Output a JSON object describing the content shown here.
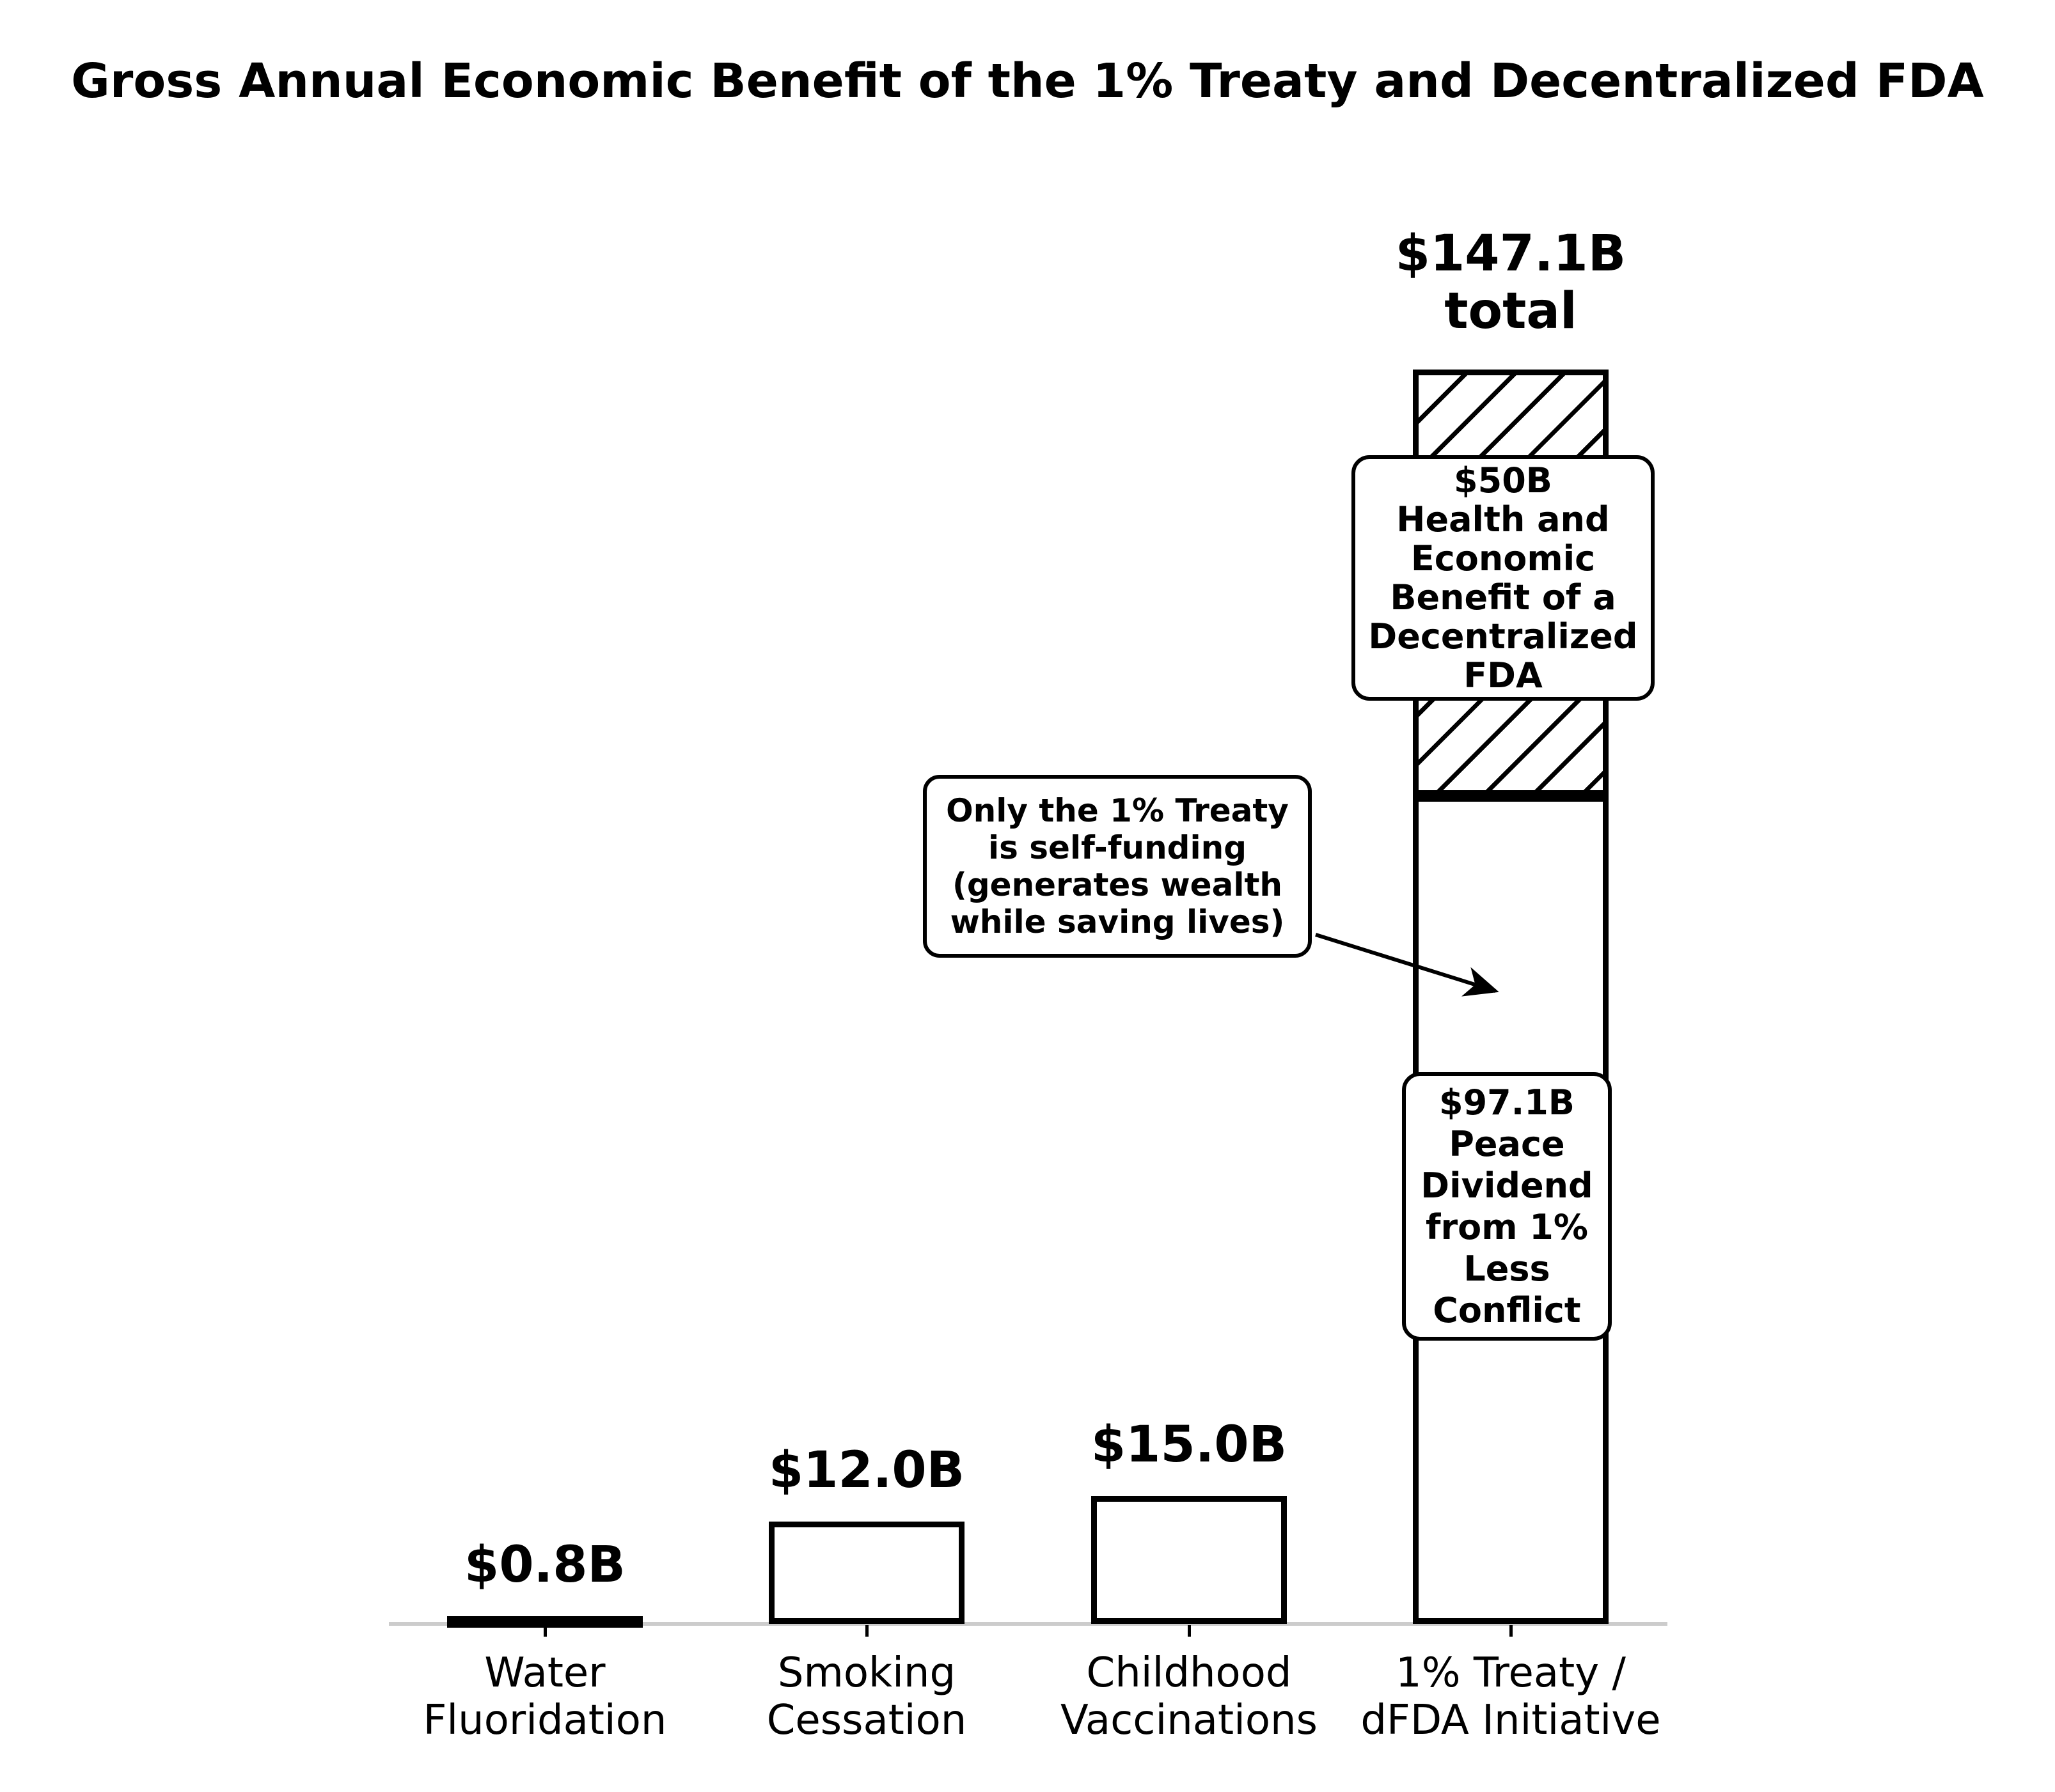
{
  "chart_data": {
    "type": "bar",
    "title": "Gross Annual Economic Benefit of the 1% Treaty and Decentralized FDA",
    "xlabel": "",
    "ylabel": "",
    "ylim": [
      0,
      160
    ],
    "grid": false,
    "legend": "none",
    "units": "billions USD per year",
    "axis_color": "#cccccc",
    "bar_edge_color": "#000000",
    "bar_fill_color": "#ffffff",
    "hatch_pattern": "/",
    "categories": [
      "Water Fluoridation",
      "Smoking Cessation",
      "Childhood Vaccinations",
      "1% Treaty / dFDA Initiative"
    ],
    "values": [
      0.8,
      12.0,
      15.0,
      147.1
    ],
    "bars": [
      {
        "category_lines": [
          "Water",
          "Fluoridation"
        ],
        "value": 0.8,
        "value_label": "$0.8B",
        "segments": [
          {
            "value": 0.8,
            "hatched": false
          }
        ]
      },
      {
        "category_lines": [
          "Smoking",
          "Cessation"
        ],
        "value": 12.0,
        "value_label": "$12.0B",
        "segments": [
          {
            "value": 12.0,
            "hatched": false
          }
        ]
      },
      {
        "category_lines": [
          "Childhood",
          "Vaccinations"
        ],
        "value": 15.0,
        "value_label": "$15.0B",
        "segments": [
          {
            "value": 15.0,
            "hatched": false
          }
        ]
      },
      {
        "category_lines": [
          "1% Treaty /",
          "dFDA Initiative"
        ],
        "value": 147.1,
        "value_label": "$147.1B total",
        "segments": [
          {
            "value": 97.1,
            "hatched": false,
            "label": "$97.1B Peace Dividend from 1% Less Conflict"
          },
          {
            "value": 50.0,
            "hatched": true,
            "label": "$50B Health and Economic Benefit of a Decentralized FDA"
          }
        ]
      }
    ],
    "total_label_lines": [
      "$147.1B",
      "total"
    ],
    "segment_boxes": {
      "dfda": {
        "lines": [
          "$50B",
          "Health and",
          "Economic",
          "Benefit of a",
          "Decentralized",
          "FDA"
        ]
      },
      "peace": {
        "lines": [
          "$97.1B",
          "Peace",
          "Dividend",
          "from 1%",
          "Less",
          "Conflict"
        ]
      }
    },
    "callout": {
      "lines": [
        "Only the 1% Treaty",
        "is self-funding",
        "(generates wealth",
        "while saving lives)"
      ]
    }
  }
}
